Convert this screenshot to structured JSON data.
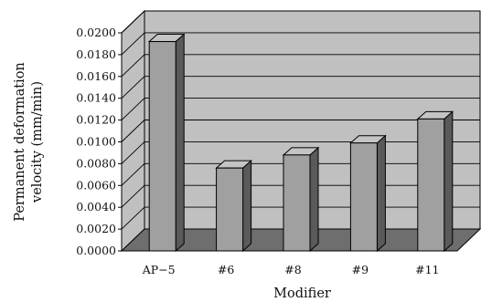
{
  "chart_data": {
    "type": "bar",
    "style": "3d",
    "categories": [
      "AP−5",
      "#6",
      "#8",
      "#9",
      "#11"
    ],
    "values": [
      0.0192,
      0.0076,
      0.0088,
      0.0099,
      0.0121
    ],
    "xlabel": "Modifier",
    "ylabel": [
      "Permanent deformation",
      "velocity (mm/min)"
    ],
    "ylim": [
      0,
      0.02
    ],
    "ytick_step": 0.002,
    "ytick_labels": [
      "0.0000",
      "0.0020",
      "0.0040",
      "0.0060",
      "0.0080",
      "0.0100",
      "0.0120",
      "0.0140",
      "0.0160",
      "0.0180",
      "0.0200"
    ],
    "grid": true,
    "legend": "none",
    "colors": {
      "wall": "#c0c0c0",
      "floor": "#6e6e6e",
      "bar_front": "#a0a0a0",
      "bar_top": "#c4c4c4",
      "bar_side": "#5a5a5a",
      "outline": "#000000"
    }
  }
}
